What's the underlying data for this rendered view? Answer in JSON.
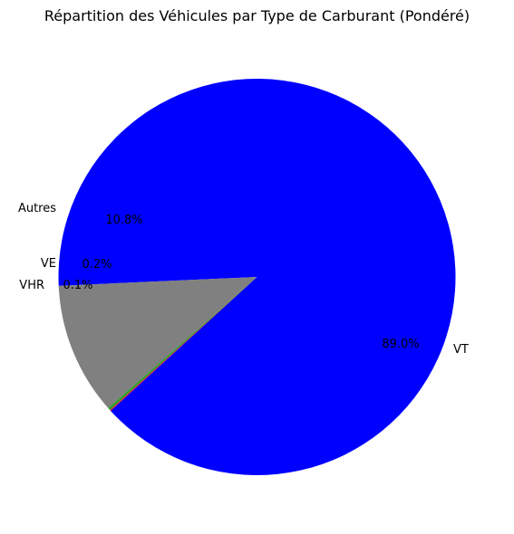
{
  "chart_data": {
    "type": "pie",
    "title": "Répartition des Véhicules par Type de Carburant (Pondéré)",
    "slices": [
      {
        "label": "VT",
        "value": 89.0,
        "pct_label": "89.0%",
        "color": "#0000ff"
      },
      {
        "label": "Autres",
        "value": 10.8,
        "pct_label": "10.8%",
        "color": "#808080"
      },
      {
        "label": "VE",
        "value": 0.2,
        "pct_label": "0.2%",
        "color": "#2ca02c"
      },
      {
        "label": "VHR",
        "value": 0.1,
        "pct_label": "0.1%",
        "color": "#d62728"
      }
    ]
  }
}
